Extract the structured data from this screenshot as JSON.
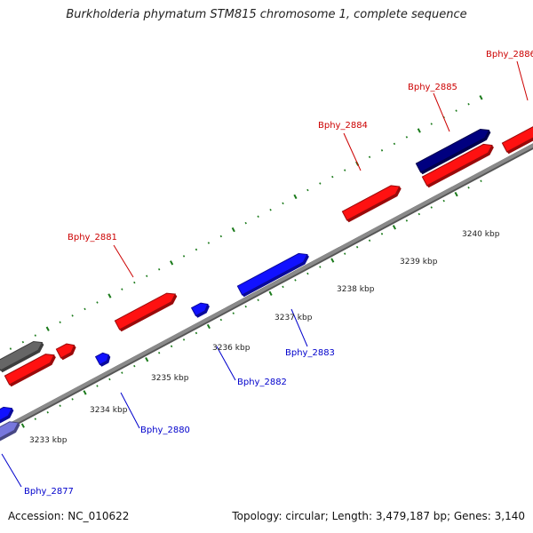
{
  "title": "Burkholderia phymatum STM815 chromosome 1, complete sequence",
  "footer": {
    "accession": "Accession: NC_010622",
    "summary": "Topology: circular; Length: 3,479,187 bp; Genes: 3,140"
  },
  "colors": {
    "backbone": "#8a8a8a",
    "tick": "#1a7a1a",
    "forward_gene": "#ff1111",
    "reverse_gene": "#1111ff",
    "forward_label": "#cc0000",
    "reverse_label": "#0000cc",
    "dark_blue_gene": "#000080",
    "grey_gene": "#666666",
    "light_blue_gene": "#7777dd"
  },
  "scale_labels": [
    "3233 kbp",
    "3234 kbp",
    "3235 kbp",
    "3236 kbp",
    "3237 kbp",
    "3238 kbp",
    "3239 kbp",
    "3240 kbp"
  ],
  "gene_labels": {
    "forward": [
      "Bphy_2881",
      "Bphy_2884",
      "Bphy_2885",
      "Bphy_2886"
    ],
    "reverse": [
      "Bphy_2877",
      "Bphy_2880",
      "Bphy_2882",
      "Bphy_2883"
    ]
  }
}
